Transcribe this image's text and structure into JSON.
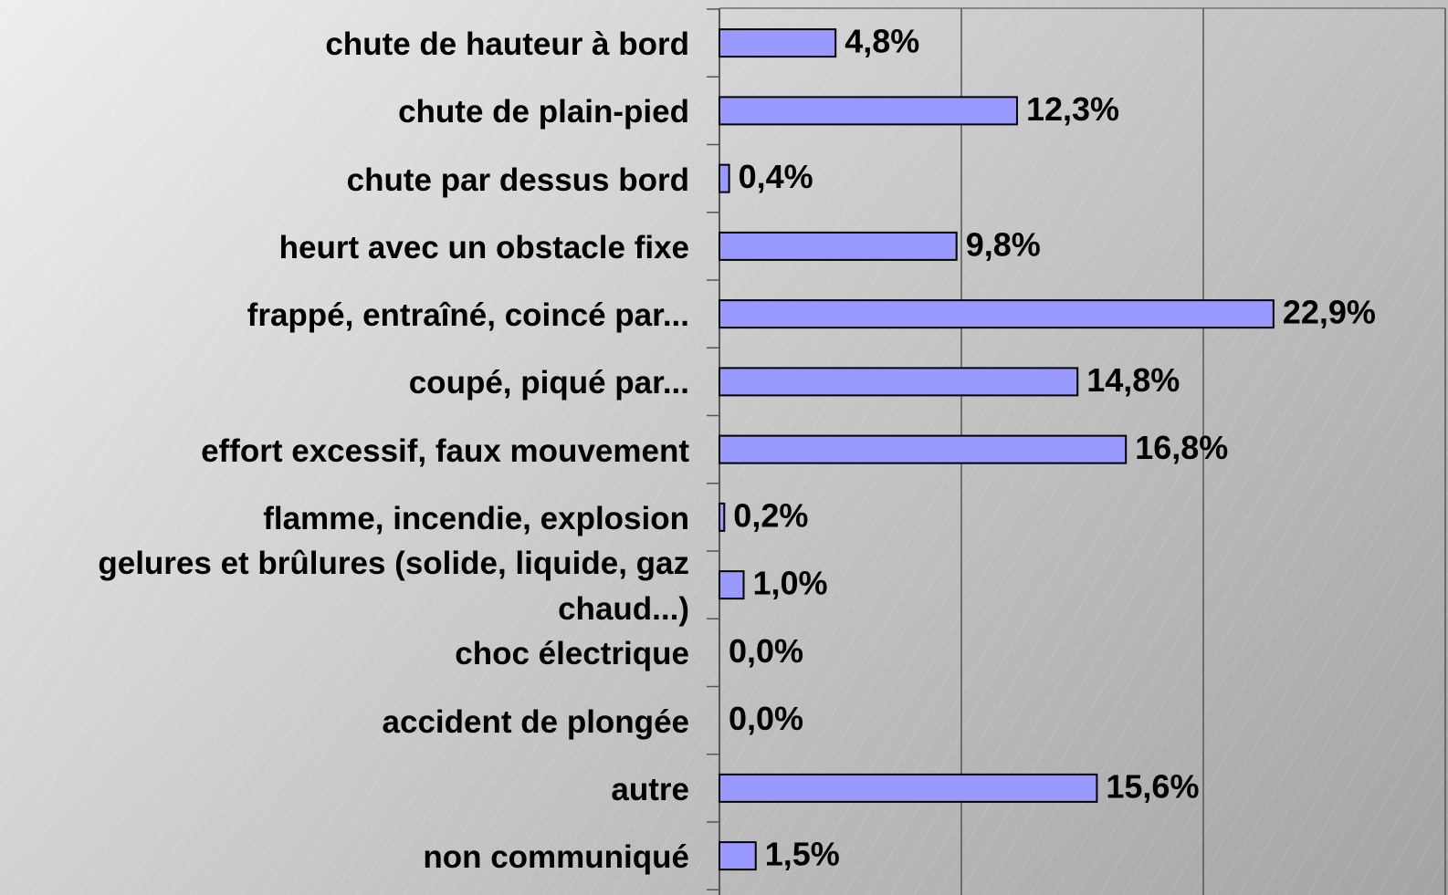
{
  "chart_data": {
    "type": "bar",
    "orientation": "horizontal",
    "categories": [
      "chute de hauteur à bord",
      "chute de plain-pied",
      "chute par dessus bord",
      "heurt avec un obstacle fixe",
      "frappé, entraîné, coincé par...",
      "coupé, piqué par...",
      "effort excessif, faux mouvement",
      "flamme, incendie, explosion",
      "gelures et brûlures (solide, liquide, gaz chaud...)",
      "choc électrique",
      "accident de plongée",
      "autre",
      "non communiqué"
    ],
    "values": [
      4.8,
      12.3,
      0.4,
      9.8,
      22.9,
      14.8,
      16.8,
      0.2,
      1.0,
      0,
      0,
      15.6,
      1.5
    ],
    "value_labels": [
      "4,8%",
      "12,3%",
      "0,4%",
      "9,8%",
      "22,9%",
      "14,8%",
      "16,8%",
      "0,2%",
      "1,0%",
      "0,0%",
      "0,0%",
      "15,6%",
      "1,5%"
    ],
    "color": "#9999ff",
    "xlim": [
      0,
      30
    ],
    "xticks": [
      0,
      10,
      20,
      30
    ],
    "grid": true
  }
}
